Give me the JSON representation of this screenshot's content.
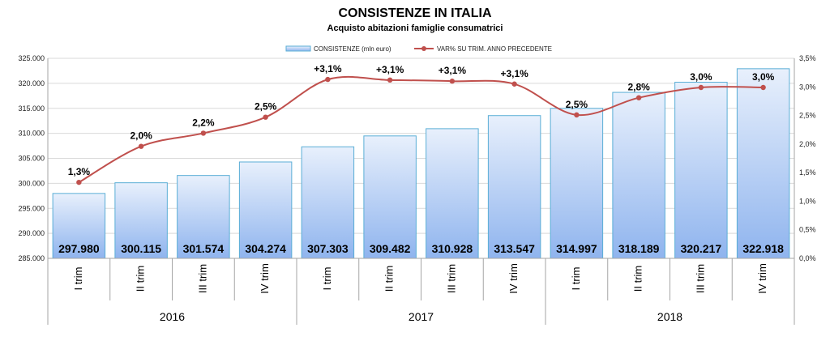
{
  "chart_data": {
    "type": "bar",
    "title": "CONSISTENZE IN ITALIA",
    "subtitle": "Acquisto abitazioni famiglie consumatrici",
    "categories": [
      "I trim",
      "II trim",
      "III trim",
      "IV trim",
      "I trim",
      "II trim",
      "III trim",
      "IV trim",
      "I trim",
      "II trim",
      "III trim",
      "IV trim"
    ],
    "groups": [
      {
        "label": "2016",
        "count": 4
      },
      {
        "label": "2017",
        "count": 4
      },
      {
        "label": "2018",
        "count": 4
      }
    ],
    "series": [
      {
        "name": "CONSISTENZE (mln euro)",
        "type": "bar",
        "axis": "left",
        "values": [
          297980,
          300115,
          301574,
          304274,
          307303,
          309482,
          310928,
          313547,
          314997,
          318189,
          320217,
          322918
        ],
        "labels": [
          "297.980",
          "300.115",
          "301.574",
          "304.274",
          "307.303",
          "309.482",
          "310.928",
          "313.547",
          "314.997",
          "318.189",
          "320.217",
          "322.918"
        ]
      },
      {
        "name": "VAR% SU TRIM. ANNO PRECEDENTE",
        "type": "line",
        "axis": "right",
        "values": [
          1.33,
          1.96,
          2.19,
          2.47,
          3.13,
          3.12,
          3.1,
          3.05,
          2.51,
          2.81,
          2.99,
          2.99
        ],
        "labels": [
          "1,3%",
          "2,0%",
          "2,2%",
          "2,5%",
          "+3,1%",
          "+3,1%",
          "+3,1%",
          "+3,1%",
          "2,5%",
          "2,8%",
          "3,0%",
          "3,0%"
        ]
      }
    ],
    "y_left": {
      "ylim": [
        285000,
        325000
      ],
      "ticks": [
        285000,
        290000,
        295000,
        300000,
        305000,
        310000,
        315000,
        320000,
        325000
      ],
      "tick_labels": [
        "285.000",
        "290.000",
        "295.000",
        "300.000",
        "305.000",
        "310.000",
        "315.000",
        "320.000",
        "325.000"
      ]
    },
    "y_right": {
      "ylim": [
        0,
        3.5
      ],
      "ticks": [
        0,
        0.5,
        1.0,
        1.5,
        2.0,
        2.5,
        3.0,
        3.5
      ],
      "tick_labels": [
        "0,0%",
        "0,5%",
        "1,0%",
        "1,5%",
        "2,0%",
        "2,5%",
        "3,0%",
        "3,5%"
      ]
    },
    "grid": true,
    "legend_position": "top-center",
    "colors": {
      "bar_top": "#e8f0fc",
      "bar_bottom": "#8fb4ee",
      "bar_stroke": "#5aaed6",
      "line": "#c0504d",
      "marker": "#c0504d",
      "grid": "#d9d9d9"
    }
  }
}
